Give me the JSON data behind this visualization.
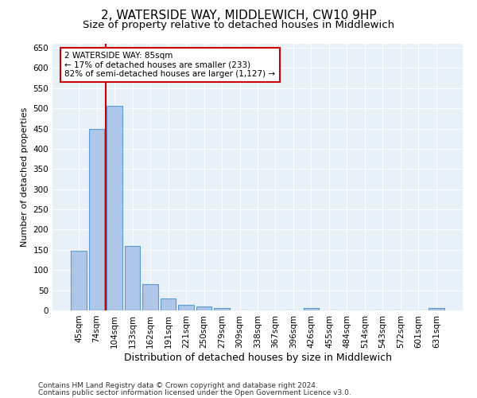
{
  "title": "2, WATERSIDE WAY, MIDDLEWICH, CW10 9HP",
  "subtitle": "Size of property relative to detached houses in Middlewich",
  "xlabel": "Distribution of detached houses by size in Middlewich",
  "ylabel": "Number of detached properties",
  "categories": [
    "45sqm",
    "74sqm",
    "104sqm",
    "133sqm",
    "162sqm",
    "191sqm",
    "221sqm",
    "250sqm",
    "279sqm",
    "309sqm",
    "338sqm",
    "367sqm",
    "396sqm",
    "426sqm",
    "455sqm",
    "484sqm",
    "514sqm",
    "543sqm",
    "572sqm",
    "601sqm",
    "631sqm"
  ],
  "values": [
    147,
    450,
    507,
    160,
    66,
    30,
    13,
    9,
    6,
    0,
    0,
    0,
    0,
    5,
    0,
    0,
    0,
    0,
    0,
    0,
    5
  ],
  "bar_color": "#aec6e8",
  "bar_edge_color": "#5b9bd5",
  "red_line_color": "#cc0000",
  "annotation_text": "2 WATERSIDE WAY: 85sqm\n← 17% of detached houses are smaller (233)\n82% of semi-detached houses are larger (1,127) →",
  "annotation_box_color": "#ffffff",
  "annotation_box_edge": "#cc0000",
  "ylim": [
    0,
    660
  ],
  "yticks": [
    0,
    50,
    100,
    150,
    200,
    250,
    300,
    350,
    400,
    450,
    500,
    550,
    600,
    650
  ],
  "footnote1": "Contains HM Land Registry data © Crown copyright and database right 2024.",
  "footnote2": "Contains public sector information licensed under the Open Government Licence v3.0.",
  "bg_color": "#e8f0f8",
  "fig_bg_color": "#ffffff",
  "title_fontsize": 11,
  "subtitle_fontsize": 9.5,
  "xlabel_fontsize": 9,
  "ylabel_fontsize": 8,
  "tick_fontsize": 7.5,
  "footnote_fontsize": 6.5
}
